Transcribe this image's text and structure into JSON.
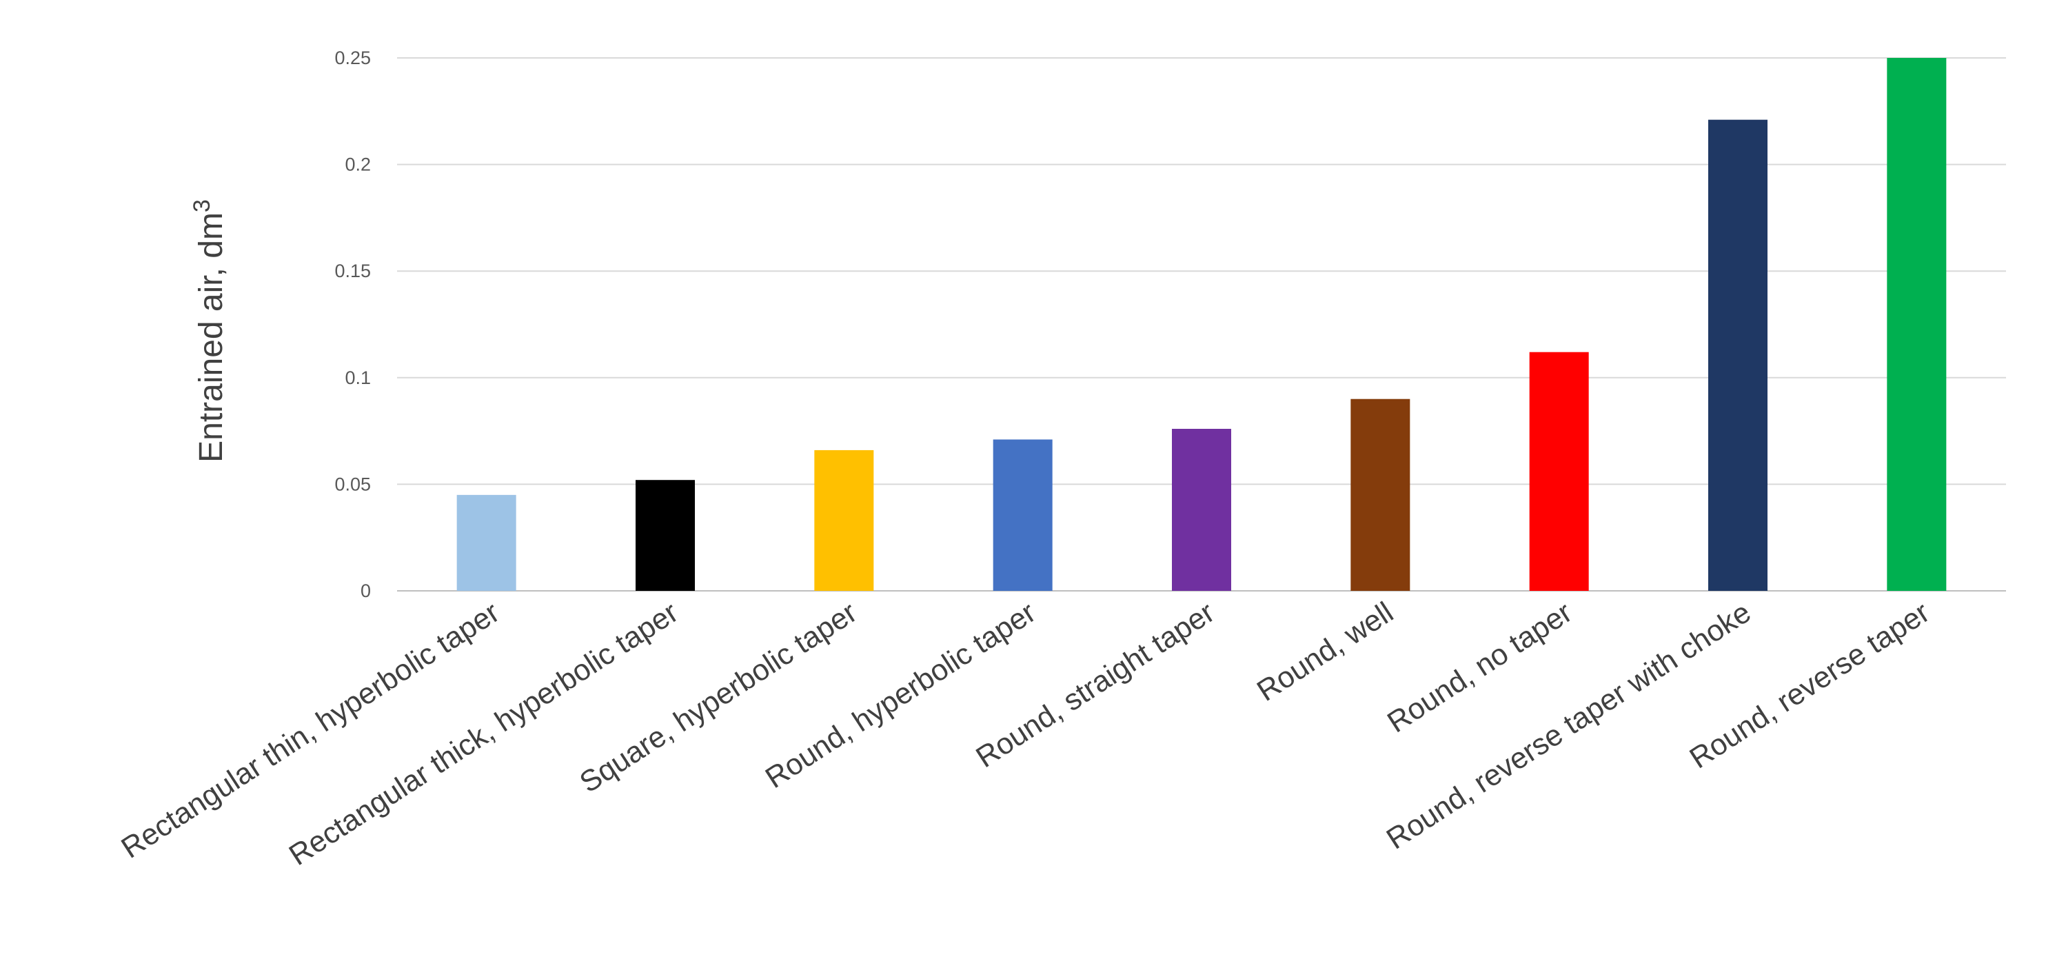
{
  "chart_data": {
    "type": "bar",
    "ylabel": "Entrained air, dm",
    "ylabel_superscript": "3",
    "ylim": [
      0,
      0.25
    ],
    "yticks": [
      "0",
      "0.05",
      "0.1",
      "0.15",
      "0.2",
      "0.25"
    ],
    "grid": true,
    "categories": [
      "Rectangular thin, hyperbolic taper",
      "Rectangular thick, hyperbolic taper",
      "Square, hyperbolic taper",
      "Round, hyperbolic taper",
      "Round, straight taper",
      "Round, well",
      "Round, no taper",
      "Round, reverse taper with choke",
      "Round, reverse taper"
    ],
    "values": [
      0.045,
      0.052,
      0.066,
      0.071,
      0.076,
      0.09,
      0.112,
      0.221,
      0.25
    ],
    "colors": [
      "#9dc3e6",
      "#000000",
      "#ffc000",
      "#4472c4",
      "#7030a0",
      "#843c0c",
      "#ff0000",
      "#1f3864",
      "#00b050"
    ]
  }
}
